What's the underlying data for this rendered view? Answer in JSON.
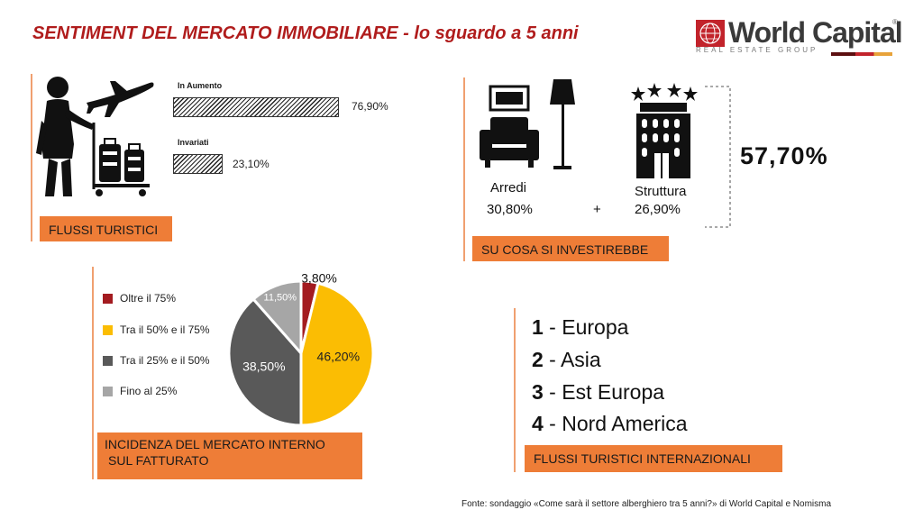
{
  "title": "SENTIMENT DEL MERCATO IMMOBILIARE - lo sguardo a 5 anni",
  "logo": {
    "wordmark": "World Capital",
    "reg": "®",
    "subtitle": "REAL ESTATE GROUP",
    "colors": [
      "#5c0f10",
      "#c2232b",
      "#e8a33a"
    ]
  },
  "tourism_flows": {
    "tag": "FLUSSI TURISTICI",
    "icon": "traveler-with-luggage-icon",
    "plane_icon": "airplane-icon",
    "bars": [
      {
        "label": "In Aumento",
        "value": 76.9,
        "display": "76,90%"
      },
      {
        "label": "Invariati",
        "value": 23.1,
        "display": "23,10%"
      }
    ]
  },
  "investment": {
    "tag": "SU COSA SI INVESTIREBBE",
    "furnishings": {
      "label": "Arredi",
      "value": "30,80%",
      "icon": "armchair-lamp-icon"
    },
    "plus": "+",
    "structure": {
      "label": "Struttura",
      "value": "26,90%",
      "icon": "hotel-building-stars-icon"
    },
    "total": "57,70%"
  },
  "domestic_market": {
    "tag_line1": "INCIDENZA DEL MERCATO INTERNO",
    "tag_line2": "SUL FATTURATO"
  },
  "chart_data": {
    "type": "pie",
    "title": "",
    "slices": [
      {
        "label": "Oltre il 75%",
        "value": 3.8,
        "display": "3,80%",
        "color": "#a31b20"
      },
      {
        "label": "Tra il 50% e il 75%",
        "value": 46.2,
        "display": "46,20%",
        "color": "#fbbd03"
      },
      {
        "label": "Tra il 25% e il 50%",
        "value": 38.5,
        "display": "38,50%",
        "color": "#595959"
      },
      {
        "label": "Fino al 25%",
        "value": 11.5,
        "display": "11,50%",
        "color": "#a6a6a6"
      }
    ],
    "legend_position": "left"
  },
  "international_flows": {
    "tag": "FLUSSI TURISTICI INTERNAZIONALI",
    "ranking": [
      {
        "rank": "1",
        "name": "Europa"
      },
      {
        "rank": "2",
        "name": "Asia"
      },
      {
        "rank": "3",
        "name": "Est Europa"
      },
      {
        "rank": "4",
        "name": "Nord America"
      }
    ],
    "separator": " - "
  },
  "footer": "Fonte: sondaggio «Come sarà il settore alberghiero tra 5 anni?» di World Capital e Nomisma"
}
